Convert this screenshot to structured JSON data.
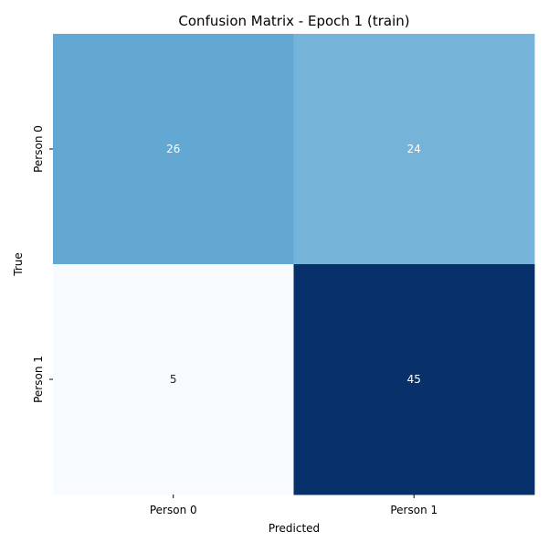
{
  "chart_data": {
    "type": "heatmap",
    "title": "Confusion Matrix - Epoch 1 (train)",
    "xlabel": "Predicted",
    "ylabel": "True",
    "x_categories": [
      "Person 0",
      "Person 1"
    ],
    "y_categories": [
      "Person 0",
      "Person 1"
    ],
    "values": [
      [
        26,
        24
      ],
      [
        5,
        45
      ]
    ],
    "colormap": "Blues",
    "colorbar": false,
    "vmin": 5,
    "vmax": 45
  }
}
